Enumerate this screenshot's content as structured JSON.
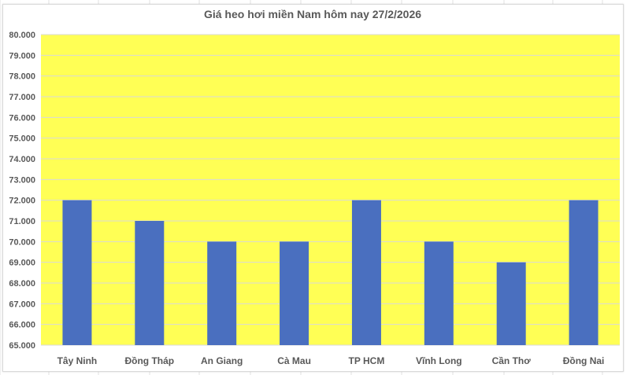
{
  "chart_data": {
    "type": "bar",
    "title": "Giá heo hơi miền Nam hôm nay 27/2/2026",
    "xlabel": "",
    "ylabel": "",
    "categories": [
      "Tây Ninh",
      "Đồng Tháp",
      "An Giang",
      "Cà Mau",
      "TP HCM",
      "Vĩnh Long",
      "Cần Thơ",
      "Đồng Nai"
    ],
    "values": [
      72000,
      71000,
      70000,
      70000,
      72000,
      70000,
      69000,
      72000
    ],
    "ylim": [
      65000,
      80000
    ],
    "ytick_step": 1000,
    "ytick_labels": [
      "65.000",
      "66.000",
      "67.000",
      "68.000",
      "69.000",
      "70.000",
      "71.000",
      "72.000",
      "73.000",
      "74.000",
      "75.000",
      "76.000",
      "77.000",
      "78.000",
      "79.000",
      "80.000"
    ],
    "grid": true,
    "legend": "none",
    "colors": {
      "bar": "#4a6fbf",
      "plot_background": "#ffff55",
      "gridline": "#d9d9d9"
    }
  }
}
